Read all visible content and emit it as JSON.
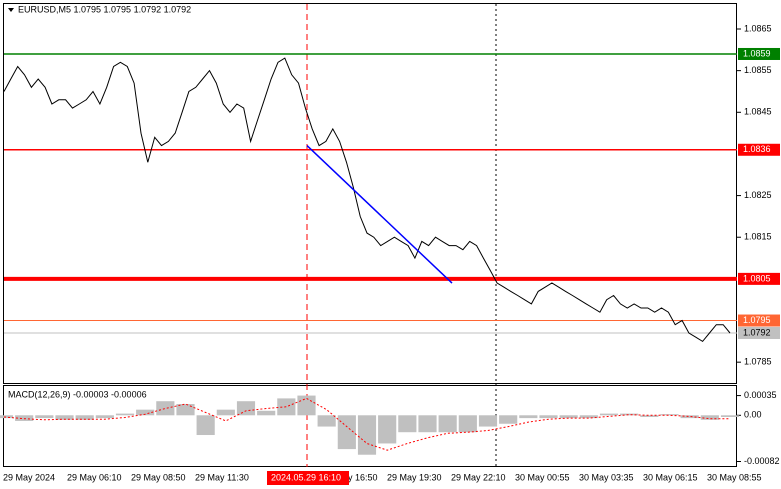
{
  "chart_data": [
    {
      "type": "line",
      "title": "EURUSD,M5  1.0795 1.0795 1.0792 1.0792",
      "color": "#000000",
      "values": [
        1.085,
        1.0853,
        1.0856,
        1.0854,
        1.0851,
        1.0853,
        1.0851,
        1.0847,
        1.0848,
        1.0848,
        1.0846,
        1.0847,
        1.0848,
        1.085,
        1.0847,
        1.0851,
        1.0856,
        1.0857,
        1.0856,
        1.0852,
        1.084,
        1.0833,
        1.0839,
        1.0837,
        1.0838,
        1.084,
        1.0845,
        1.085,
        1.0851,
        1.0853,
        1.0855,
        1.0852,
        1.0847,
        1.0845,
        1.0847,
        1.0846,
        1.0838,
        1.0843,
        1.0848,
        1.0853,
        1.0857,
        1.0858,
        1.0854,
        1.0852,
        1.0846,
        1.0841,
        1.0837,
        1.0838,
        1.0841,
        1.0838,
        1.0833,
        1.0827,
        1.082,
        1.0816,
        1.0815,
        1.0813,
        1.0814,
        1.0815,
        1.0814,
        1.0813,
        1.081,
        1.0814,
        1.0813,
        1.0815,
        1.0814,
        1.0813,
        1.0813,
        1.0812,
        1.0814,
        1.0813,
        1.081,
        1.0807,
        1.0804,
        1.0803,
        1.0802,
        1.0801,
        1.08,
        1.0799,
        1.0802,
        1.0803,
        1.0804,
        1.0803,
        1.0802,
        1.0801,
        1.08,
        1.0799,
        1.0798,
        1.0797,
        1.08,
        1.0801,
        1.0799,
        1.0798,
        1.0799,
        1.0798,
        1.0798,
        1.0797,
        1.0798,
        1.0797,
        1.0794,
        1.0795,
        1.0792,
        1.0791,
        1.079,
        1.0792,
        1.0794,
        1.0794,
        1.0792
      ],
      "ylim": [
        1.078,
        1.0871
      ],
      "yticks": [
        1.0865,
        1.0855,
        1.0845,
        1.0825,
        1.0815,
        1.0785
      ],
      "levels": [
        {
          "value": 1.0859,
          "color": "#008000",
          "width": 1.5
        },
        {
          "value": 1.0836,
          "color": "#ff0000",
          "width": 1.5
        },
        {
          "value": 1.0805,
          "color": "#ff0000",
          "width": 4
        },
        {
          "value": 1.0795,
          "color": "#ff6633",
          "width": 1
        },
        {
          "value": 1.0792,
          "color": "#c0c0c0",
          "width": 1
        }
      ],
      "trendline": {
        "color": "#0000ff",
        "values": [
          1.0837,
          1.0804
        ]
      },
      "x_labels": [
        "29 May 2024",
        "29 May 06:10",
        "29 May 08:50",
        "29 May 11:30",
        "29 May 16:50",
        "29 May 19:30",
        "29 May 22:10",
        "30 May 00:55",
        "30 May 03:35",
        "30 May 06:15",
        "30 May 08:55"
      ],
      "cursor_label": "2024.05.29 16:10"
    },
    {
      "type": "macd",
      "title": "MACD(12,26,9) -0.00003 -0.00006",
      "histogram": {
        "color": "#c0c0c0",
        "values": [
          -5e-05,
          -0.0001,
          -5e-05,
          -8e-05,
          -8e-05,
          -5e-05,
          3e-05,
          0.0001,
          0.00025,
          0.0002,
          -0.00035,
          0.0001,
          0.00025,
          8e-05,
          0.0003,
          0.00035,
          -0.0002,
          -0.0006,
          -0.0007,
          -0.0005,
          -0.0003,
          -0.0003,
          -0.0003,
          -0.0003,
          -0.0002,
          -0.00015,
          -5e-05,
          -5e-05,
          -5e-05,
          -5e-05,
          3e-05,
          3e-05,
          -3e-05,
          2e-05,
          -5e-05,
          -8e-05,
          -3e-05
        ]
      },
      "signal": {
        "color": "#ff0000",
        "values": [
          -3e-05,
          -6e-05,
          -8e-05,
          -7e-05,
          -7e-05,
          -7e-05,
          -4e-05,
          2e-05,
          0.00012,
          0.0002,
          5e-05,
          -0.0001,
          8e-05,
          0.00012,
          0.00015,
          0.0003,
          0.0001,
          -0.0002,
          -0.0005,
          -0.00062,
          -0.0005,
          -0.0004,
          -0.00032,
          -0.0003,
          -0.00027,
          -0.0002,
          -0.00012,
          -7e-05,
          -5e-05,
          -5e-05,
          -2e-05,
          1e-05,
          0.0,
          0.0,
          -2e-05,
          -6e-05,
          -6e-05
        ]
      },
      "ylim": [
        0.00052,
        -0.0009
      ],
      "yticks": [
        0.00035,
        {
          "value": 0,
          "label": "0.00"
        },
        -0.00082
      ]
    }
  ]
}
